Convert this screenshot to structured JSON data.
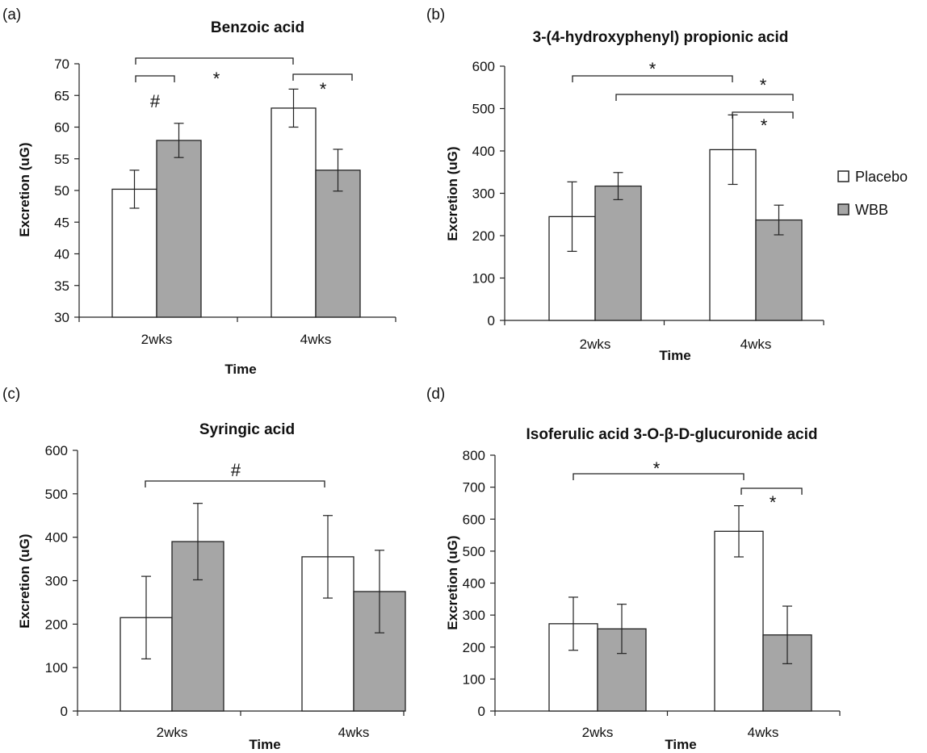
{
  "colors": {
    "placebo": "#ffffff",
    "wbb": "#a6a6a6",
    "stroke": "#222222"
  },
  "legend": [
    {
      "name": "Placebo",
      "color": "#ffffff"
    },
    {
      "name": "WBB",
      "color": "#a6a6a6"
    }
  ],
  "chart_data": [
    {
      "type": "bar",
      "panel_label": "(a)",
      "title": "Benzoic acid",
      "xlabel": "Time",
      "ylabel": "Excretion (uG)",
      "ylim": [
        30,
        70
      ],
      "yticks": [
        30,
        35,
        40,
        45,
        50,
        55,
        60,
        65,
        70
      ],
      "categories": [
        "2wks",
        "4wks"
      ],
      "series": [
        {
          "name": "Placebo",
          "values": [
            50.2,
            63.0
          ],
          "errors": [
            3.0,
            3.0
          ]
        },
        {
          "name": "WBB",
          "values": [
            57.9,
            53.2
          ],
          "errors": [
            2.7,
            3.3
          ]
        }
      ],
      "significance": [
        {
          "label": "#",
          "from": "2wks Placebo",
          "to": "2wks WBB"
        },
        {
          "label": "*",
          "from": "2wks Placebo",
          "to": "4wks Placebo"
        },
        {
          "label": "*",
          "from": "4wks Placebo",
          "to": "4wks WBB"
        }
      ]
    },
    {
      "type": "bar",
      "panel_label": "(b)",
      "title": "3-(4-hydroxyphenyl) propionic acid",
      "xlabel": "Time",
      "ylabel": "Excretion (uG)",
      "ylim": [
        0,
        600
      ],
      "yticks": [
        0,
        100,
        200,
        300,
        400,
        500,
        600
      ],
      "categories": [
        "2wks",
        "4wks"
      ],
      "series": [
        {
          "name": "Placebo",
          "values": [
            245,
            403
          ],
          "errors": [
            82,
            82
          ]
        },
        {
          "name": "WBB",
          "values": [
            317,
            237
          ],
          "errors": [
            32,
            35
          ]
        }
      ],
      "significance": [
        {
          "label": "*",
          "from": "2wks Placebo",
          "to": "4wks Placebo"
        },
        {
          "label": "*",
          "from": "2wks WBB",
          "to": "4wks WBB"
        },
        {
          "label": "*",
          "from": "4wks Placebo",
          "to": "4wks WBB"
        }
      ]
    },
    {
      "type": "bar",
      "panel_label": "(c)",
      "title": "Syringic acid",
      "xlabel": "Time",
      "ylabel": "Excretion (uG)",
      "ylim": [
        0,
        600
      ],
      "yticks": [
        0,
        100,
        200,
        300,
        400,
        500,
        600
      ],
      "categories": [
        "2wks",
        "4wks"
      ],
      "series": [
        {
          "name": "Placebo",
          "values": [
            215,
            355
          ],
          "errors": [
            95,
            95
          ]
        },
        {
          "name": "WBB",
          "values": [
            390,
            275
          ],
          "errors": [
            88,
            95
          ]
        }
      ],
      "significance": [
        {
          "label": "#",
          "from": "2wks Placebo",
          "to": "4wks Placebo"
        }
      ]
    },
    {
      "type": "bar",
      "panel_label": "(d)",
      "title": "Isoferulic acid 3-O-β-D-glucuronide acid",
      "xlabel": "Time",
      "ylabel": "Excretion (uG)",
      "ylim": [
        0,
        800
      ],
      "yticks": [
        0,
        100,
        200,
        300,
        400,
        500,
        600,
        700,
        800
      ],
      "categories": [
        "2wks",
        "4wks"
      ],
      "series": [
        {
          "name": "Placebo",
          "values": [
            273,
            562
          ],
          "errors": [
            83,
            80
          ]
        },
        {
          "name": "WBB",
          "values": [
            257,
            238
          ],
          "errors": [
            77,
            90
          ]
        }
      ],
      "significance": [
        {
          "label": "*",
          "from": "2wks Placebo",
          "to": "4wks Placebo"
        },
        {
          "label": "*",
          "from": "4wks Placebo",
          "to": "4wks WBB"
        }
      ]
    }
  ]
}
